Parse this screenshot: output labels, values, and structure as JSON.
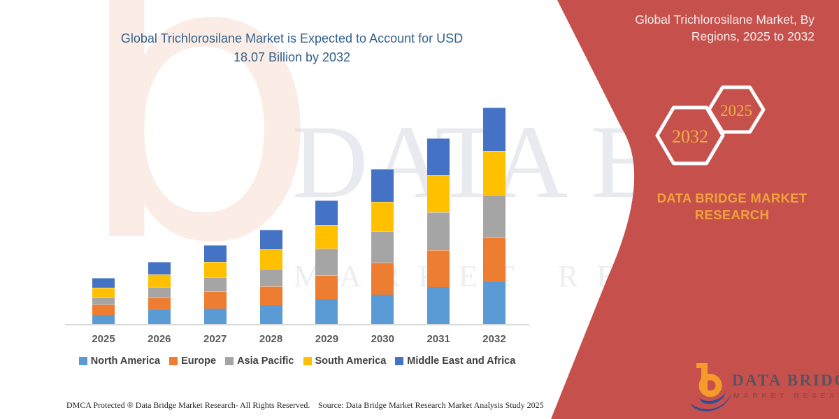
{
  "page_title": "Global Trichlorosilane Market, By Regions, 2025 to 2032",
  "left_panel": {
    "chart_title_line1": "Global Trichlorosilane Market is Expected to Account for USD",
    "chart_title_line2": "18.07 Billion by 2032",
    "title_color": "#33608C"
  },
  "right_panel": {
    "header_line1": "Global Trichlorosilane Market, By",
    "header_line2": "Regions, 2025 to 2032",
    "hexagon_left_year": "2032",
    "hexagon_right_year": "2025",
    "brand_line1": "DATA BRIDGE MARKET",
    "brand_line2": "RESEARCH",
    "panel_color": "#C5504C",
    "accent_gold": "#EFAF45"
  },
  "watermark": {
    "brand_text": "DATA BRIDGE",
    "sub_text": "MARKET RESEARCH",
    "letter_b": "b"
  },
  "chart_data": {
    "type": "bar",
    "stacked": true,
    "unit": "USD Billion",
    "title": "Global Trichlorosilane Market is Expected to Account for USD 18.07 Billion by 2032",
    "categories": [
      "2025",
      "2026",
      "2027",
      "2028",
      "2029",
      "2030",
      "2031",
      "2032"
    ],
    "series": [
      {
        "name": "North America",
        "color": "#5B9BD5",
        "values": [
          0.76,
          1.17,
          1.28,
          1.57,
          2.1,
          2.45,
          3.1,
          3.5
        ]
      },
      {
        "name": "Europe",
        "color": "#ED7D31",
        "values": [
          0.87,
          1.05,
          1.46,
          1.57,
          1.98,
          2.68,
          3.1,
          3.74
        ]
      },
      {
        "name": "Asia Pacific",
        "color": "#A5A5A5",
        "values": [
          0.58,
          0.87,
          1.17,
          1.46,
          2.22,
          2.62,
          3.1,
          3.57
        ]
      },
      {
        "name": "South America",
        "color": "#FFC000",
        "values": [
          0.82,
          1.05,
          1.28,
          1.63,
          1.98,
          2.45,
          3.1,
          3.63
        ]
      },
      {
        "name": "Middle East and Africa",
        "color": "#4472C4",
        "values": [
          0.82,
          1.05,
          1.4,
          1.63,
          2.04,
          2.74,
          3.11,
          3.63
        ]
      }
    ],
    "totals": [
      3.85,
      5.19,
      6.59,
      7.86,
      10.32,
      12.94,
      15.51,
      18.07
    ],
    "legend_position": "bottom",
    "gridlines": false,
    "y_axis_visible": false,
    "x_axis_color": "#DADADA"
  },
  "footer": {
    "dmca_text": "DMCA Protected ® Data Bridge Market Research-  All Rights Reserved.",
    "source_text": "Source: Data Bridge Market Research  Market Analysis Study 2025"
  },
  "logo": {
    "name": "DATA BRIDGE",
    "tagline": "MARKET RESEARCH"
  }
}
